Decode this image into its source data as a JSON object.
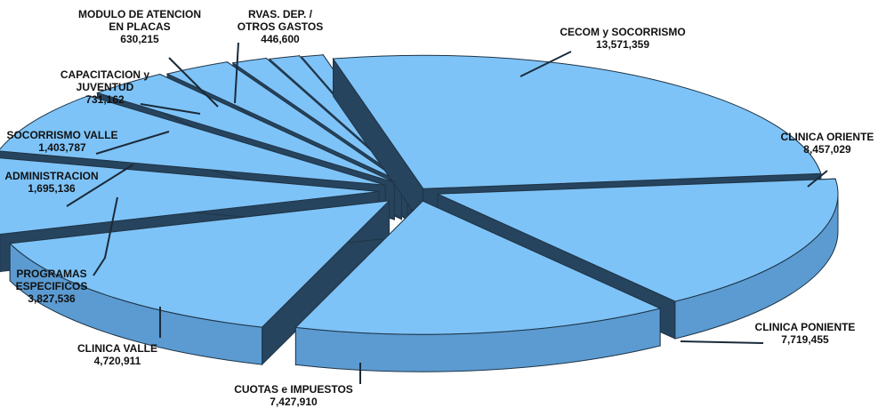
{
  "chart_data": {
    "type": "pie",
    "style": "3d-exploded",
    "colors": {
      "top": "#7ec3f7",
      "side": "#27445e",
      "side_front": "#5b9bd1",
      "outline": "#1f3447",
      "leader": "#1a2a3a"
    },
    "slices": [
      {
        "name": "CECOM y SOCORRISMO",
        "value": 13571359,
        "value_label": "13,571,359"
      },
      {
        "name": "CLINICA ORIENTE",
        "value": 8457029,
        "value_label": "8,457,029"
      },
      {
        "name": "CLINICA PONIENTE",
        "value": 7719455,
        "value_label": "7,719,455"
      },
      {
        "name": "CUOTAS e IMPUESTOS",
        "value": 7427910,
        "value_label": "7,427,910"
      },
      {
        "name": "CLINICA VALLE",
        "value": 4720911,
        "value_label": "4,720,911"
      },
      {
        "name": "PROGRAMAS ESPECIFICOS",
        "value": 3827536,
        "value_label": "3,827,536"
      },
      {
        "name": "ADMINISTRACION",
        "value": 1695136,
        "value_label": "1,695,136"
      },
      {
        "name": "SOCORRISMO VALLE",
        "value": 1403787,
        "value_label": "1,403,787"
      },
      {
        "name": "CAPACITACION y JUVENTUD",
        "value": 731162,
        "value_label": "731,162"
      },
      {
        "name": "MODULO DE ATENCION EN PLACAS",
        "value": 630215,
        "value_label": "630,215"
      },
      {
        "name": "RVAS. DEP. / OTROS GASTOS",
        "value": 446600,
        "value_label": "446,600"
      }
    ]
  }
}
